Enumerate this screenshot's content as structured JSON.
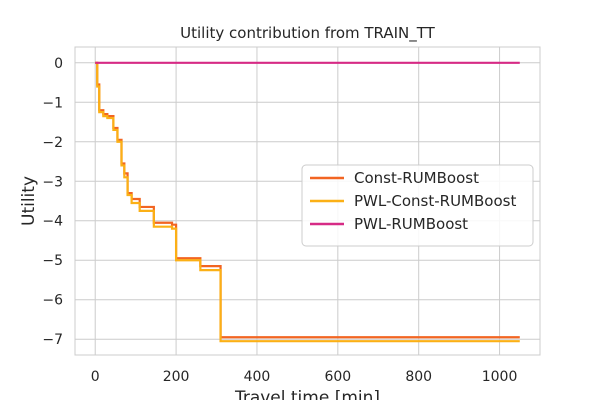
{
  "chart_data": {
    "type": "line",
    "title": "Utility contribution from TRAIN_TT",
    "xlabel": "Travel time [min]",
    "ylabel": "Utility",
    "xlim": [
      -50,
      1100
    ],
    "ylim": [
      -7.4,
      0.4
    ],
    "xticks": [
      0,
      200,
      400,
      600,
      800,
      1000
    ],
    "yticks": [
      0,
      -1,
      -2,
      -3,
      -4,
      -5,
      -6,
      -7
    ],
    "ytick_labels": [
      "0",
      "−1",
      "−2",
      "−3",
      "−4",
      "−5",
      "−6",
      "−7"
    ],
    "grid": true,
    "legend_position": "center-right",
    "series": [
      {
        "name": "Const-RUMBoost",
        "color": "#f26522",
        "x": [
          0,
          5,
          5,
          10,
          10,
          20,
          20,
          30,
          30,
          45,
          45,
          55,
          55,
          65,
          65,
          72,
          72,
          80,
          80,
          90,
          90,
          110,
          110,
          145,
          145,
          190,
          190,
          200,
          200,
          260,
          260,
          310,
          310,
          1050
        ],
        "y": [
          0,
          0,
          -0.55,
          -0.55,
          -1.2,
          -1.2,
          -1.3,
          -1.3,
          -1.35,
          -1.35,
          -1.65,
          -1.65,
          -1.95,
          -1.95,
          -2.55,
          -2.55,
          -2.8,
          -2.8,
          -3.3,
          -3.3,
          -3.45,
          -3.45,
          -3.65,
          -3.65,
          -4.05,
          -4.05,
          -4.1,
          -4.1,
          -4.95,
          -4.95,
          -5.15,
          -5.15,
          -6.95,
          -6.95
        ]
      },
      {
        "name": "PWL-Const-RUMBoost",
        "color": "#fbb016",
        "x": [
          0,
          5,
          5,
          10,
          10,
          20,
          20,
          30,
          30,
          45,
          45,
          55,
          55,
          65,
          65,
          72,
          72,
          80,
          80,
          90,
          90,
          110,
          110,
          145,
          145,
          190,
          190,
          200,
          200,
          260,
          260,
          310,
          310,
          1050
        ],
        "y": [
          0,
          0,
          -0.6,
          -0.6,
          -1.25,
          -1.25,
          -1.35,
          -1.35,
          -1.4,
          -1.4,
          -1.7,
          -1.7,
          -2.0,
          -2.0,
          -2.6,
          -2.6,
          -2.9,
          -2.9,
          -3.35,
          -3.35,
          -3.55,
          -3.55,
          -3.75,
          -3.75,
          -4.15,
          -4.15,
          -4.2,
          -4.2,
          -5.0,
          -5.0,
          -5.25,
          -5.25,
          -7.05,
          -7.05
        ]
      },
      {
        "name": "PWL-RUMBoost",
        "color": "#d62a85",
        "x": [
          0,
          1050
        ],
        "y": [
          0,
          0
        ]
      }
    ]
  }
}
